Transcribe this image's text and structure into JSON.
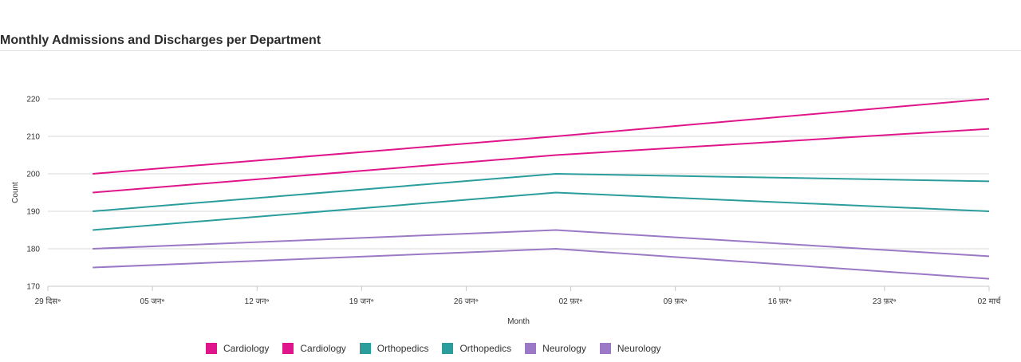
{
  "chart_data": {
    "type": "line",
    "title": "Monthly Admissions and Discharges per Department",
    "xlabel": "Month",
    "ylabel": "Count",
    "ylim": [
      170,
      220
    ],
    "y_ticks": [
      170,
      180,
      190,
      200,
      210,
      220
    ],
    "x_tick_labels": [
      "29 दिस॰",
      "05 जन॰",
      "12 जन॰",
      "19 जन॰",
      "26 जन॰",
      "02 फ़र॰",
      "09 फ़र॰",
      "16 फ़र॰",
      "23 फ़र॰",
      "02 मार्च"
    ],
    "x": [
      "2024-01-01",
      "2024-02-01",
      "2024-03-01"
    ],
    "grid": true,
    "legend_position": "bottom",
    "series": [
      {
        "name": "Cardiology",
        "color": "#e0158c",
        "values": [
          200,
          210,
          220
        ]
      },
      {
        "name": "Cardiology",
        "color": "#e0158c",
        "values": [
          195,
          205,
          212
        ]
      },
      {
        "name": "Orthopedics",
        "color": "#2a9d9c",
        "values": [
          190,
          200,
          198
        ]
      },
      {
        "name": "Orthopedics",
        "color": "#2a9d9c",
        "values": [
          185,
          195,
          190
        ]
      },
      {
        "name": "Neurology",
        "color": "#9b79c6",
        "values": [
          180,
          185,
          178
        ]
      },
      {
        "name": "Neurology",
        "color": "#9b79c6",
        "values": [
          175,
          180,
          172
        ]
      }
    ]
  }
}
